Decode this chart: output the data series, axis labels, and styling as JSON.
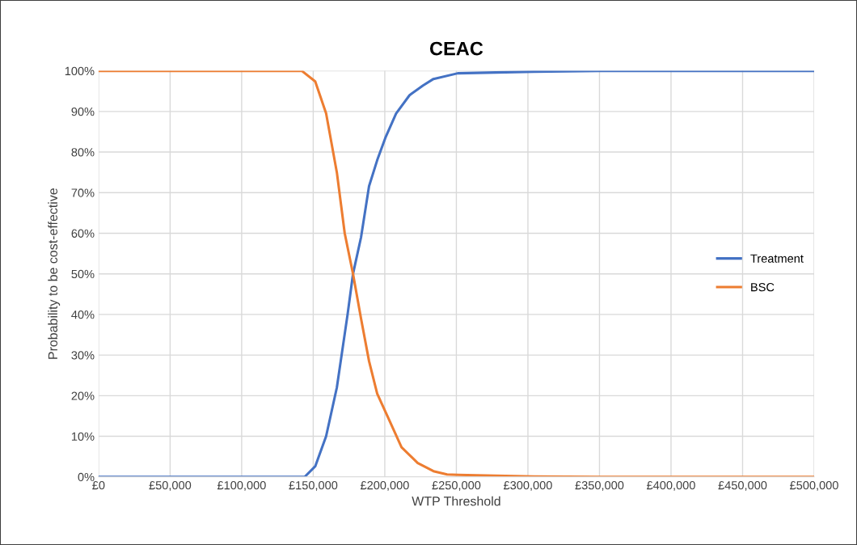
{
  "chart_data": {
    "type": "line",
    "title": "CEAC",
    "xlabel": "WTP Threshold",
    "ylabel": "Probability to be cost-effective",
    "xlim": [
      0,
      500000
    ],
    "ylim": [
      0,
      100
    ],
    "xticks": [
      {
        "value": 0,
        "label": "£0"
      },
      {
        "value": 50000,
        "label": "£50,000"
      },
      {
        "value": 100000,
        "label": "£100,000"
      },
      {
        "value": 150000,
        "label": "£150,000"
      },
      {
        "value": 200000,
        "label": "£200,000"
      },
      {
        "value": 250000,
        "label": "£250,000"
      },
      {
        "value": 300000,
        "label": "£300,000"
      },
      {
        "value": 350000,
        "label": "£350,000"
      },
      {
        "value": 400000,
        "label": "£400,000"
      },
      {
        "value": 450000,
        "label": "£450,000"
      },
      {
        "value": 500000,
        "label": "£500,000"
      }
    ],
    "yticks": [
      {
        "value": 0,
        "label": "0%"
      },
      {
        "value": 10,
        "label": "10%"
      },
      {
        "value": 20,
        "label": "20%"
      },
      {
        "value": 30,
        "label": "30%"
      },
      {
        "value": 40,
        "label": "40%"
      },
      {
        "value": 50,
        "label": "50%"
      },
      {
        "value": 60,
        "label": "60%"
      },
      {
        "value": 70,
        "label": "70%"
      },
      {
        "value": 80,
        "label": "80%"
      },
      {
        "value": 90,
        "label": "90%"
      },
      {
        "value": 100,
        "label": "100%"
      }
    ],
    "grid": true,
    "legend": "right",
    "marker": "none",
    "line_style": "solid",
    "series": [
      {
        "name": "Treatment",
        "color": "#4472c4",
        "x": [
          0,
          100000,
          144000,
          151400,
          159000,
          166500,
          174000,
          177800,
          183400,
          189000,
          194700,
          200400,
          207900,
          217300,
          226700,
          234000,
          251000,
          304000,
          350000,
          500000
        ],
        "values": [
          0,
          0,
          0,
          2.6,
          10,
          22,
          40,
          50,
          59,
          71.6,
          78,
          83.5,
          89.5,
          94,
          96.4,
          98,
          99.4,
          99.8,
          100,
          100
        ]
      },
      {
        "name": "BSC",
        "color": "#ed7d31",
        "x": [
          0,
          100000,
          142000,
          151400,
          159000,
          166500,
          172000,
          177800,
          183400,
          189000,
          194700,
          202300,
          211700,
          223000,
          234000,
          243500,
          251000,
          304000,
          350000,
          500000
        ],
        "values": [
          100,
          100,
          100,
          97.4,
          89.5,
          75,
          60,
          50,
          39,
          28.5,
          20.5,
          14.6,
          7.3,
          3.4,
          1.4,
          0.6,
          0.5,
          0.1,
          0,
          0
        ]
      }
    ]
  }
}
